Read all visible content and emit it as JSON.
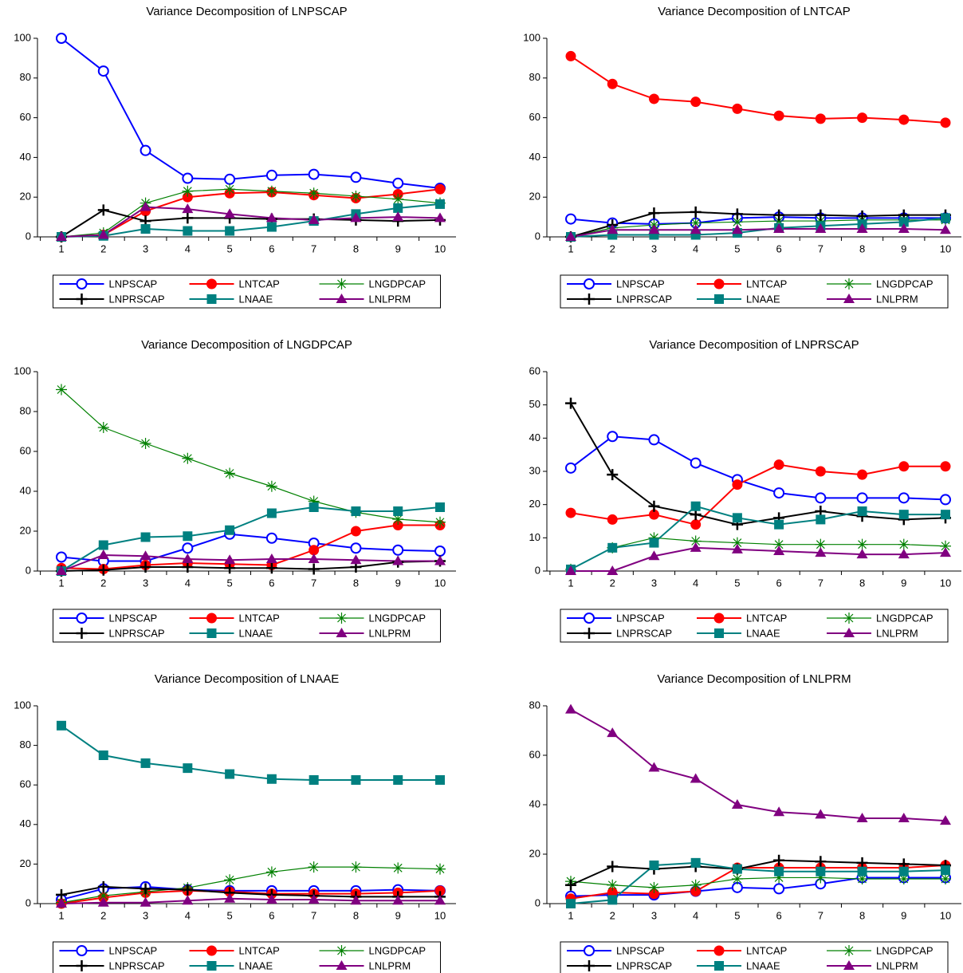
{
  "chart_data": [
    {
      "type": "line",
      "title": "Variance Decomposition of LNPSCAP",
      "categories": [
        "1",
        "2",
        "3",
        "4",
        "5",
        "6",
        "7",
        "8",
        "9",
        "10"
      ],
      "ylim": [
        0,
        100
      ],
      "yticks": [
        0,
        20,
        40,
        60,
        80,
        100
      ],
      "series": [
        {
          "name": "LNPSCAP",
          "color": "#0000ff",
          "marker": "circle-open",
          "values": [
            100,
            83.5,
            43.5,
            29.5,
            29,
            31,
            31.5,
            30,
            27,
            24.5
          ]
        },
        {
          "name": "LNTCAP",
          "color": "#ff0000",
          "marker": "circle",
          "values": [
            0,
            1,
            13,
            20,
            22,
            22.5,
            21,
            19.5,
            21.5,
            24
          ]
        },
        {
          "name": "LNGDPCAP",
          "color": "#008000",
          "marker": "asterisk",
          "values": [
            0,
            2,
            17,
            23,
            24,
            23,
            22,
            20.5,
            19,
            17
          ]
        },
        {
          "name": "LNPRSCAP",
          "color": "#000000",
          "marker": "plus",
          "values": [
            0,
            13.5,
            8,
            9.5,
            9.5,
            9,
            9,
            8.5,
            8,
            8.5
          ]
        },
        {
          "name": "LNAAE",
          "color": "#008080",
          "marker": "square",
          "values": [
            0,
            0.5,
            4,
            3,
            3,
            5,
            8,
            11.5,
            14.5,
            16.5
          ]
        },
        {
          "name": "LNLPRM",
          "color": "#800080",
          "marker": "triangle",
          "values": [
            0,
            1,
            15,
            14,
            11.5,
            9.5,
            8.5,
            9.5,
            10,
            9.5
          ]
        }
      ]
    },
    {
      "type": "line",
      "title": "Variance Decomposition of LNTCAP",
      "categories": [
        "1",
        "2",
        "3",
        "4",
        "5",
        "6",
        "7",
        "8",
        "9",
        "10"
      ],
      "ylim": [
        0,
        100
      ],
      "yticks": [
        0,
        20,
        40,
        60,
        80,
        100
      ],
      "series": [
        {
          "name": "LNPSCAP",
          "color": "#0000ff",
          "marker": "circle-open",
          "values": [
            9,
            7,
            6.5,
            7,
            9.5,
            10,
            9.5,
            9.5,
            9.5,
            9.5
          ]
        },
        {
          "name": "LNTCAP",
          "color": "#ff0000",
          "marker": "circle",
          "values": [
            91,
            77,
            69.5,
            68,
            64.5,
            61,
            59.5,
            60,
            59,
            57.5
          ]
        },
        {
          "name": "LNGDPCAP",
          "color": "#008000",
          "marker": "asterisk",
          "values": [
            0,
            4.5,
            6,
            7,
            7.5,
            8,
            8,
            8.5,
            8.5,
            8.5
          ]
        },
        {
          "name": "LNPRSCAP",
          "color": "#000000",
          "marker": "plus",
          "values": [
            0,
            6,
            12,
            12.5,
            11.5,
            11,
            11,
            10.5,
            11,
            11
          ]
        },
        {
          "name": "LNAAE",
          "color": "#008080",
          "marker": "square",
          "values": [
            0,
            1,
            1,
            1,
            2,
            4.5,
            5.5,
            6.5,
            7.5,
            9.5
          ]
        },
        {
          "name": "LNLPRM",
          "color": "#800080",
          "marker": "triangle",
          "values": [
            0,
            3.5,
            3.5,
            3.5,
            3.5,
            4,
            4,
            4,
            4,
            3.5
          ]
        }
      ]
    },
    {
      "type": "line",
      "title": "Variance Decomposition of LNGDPCAP",
      "categories": [
        "1",
        "2",
        "3",
        "4",
        "5",
        "6",
        "7",
        "8",
        "9",
        "10"
      ],
      "ylim": [
        0,
        100
      ],
      "yticks": [
        0,
        20,
        40,
        60,
        80,
        100
      ],
      "series": [
        {
          "name": "LNPSCAP",
          "color": "#0000ff",
          "marker": "circle-open",
          "values": [
            7,
            5,
            5,
            11.5,
            18.5,
            16.5,
            14,
            11.5,
            10.5,
            10
          ]
        },
        {
          "name": "LNTCAP",
          "color": "#ff0000",
          "marker": "circle",
          "values": [
            1.5,
            1,
            3,
            4,
            3.5,
            3,
            10.5,
            20,
            23,
            23
          ]
        },
        {
          "name": "LNGDPCAP",
          "color": "#008000",
          "marker": "asterisk",
          "values": [
            91,
            72,
            64,
            56.5,
            49,
            42.5,
            35,
            29.5,
            26,
            24.5
          ]
        },
        {
          "name": "LNPRSCAP",
          "color": "#000000",
          "marker": "plus",
          "values": [
            0,
            0.5,
            2,
            2,
            1.5,
            1.5,
            1,
            2,
            4.5,
            5
          ]
        },
        {
          "name": "LNAAE",
          "color": "#008080",
          "marker": "square",
          "values": [
            0,
            13,
            17,
            17.5,
            20.5,
            29,
            32,
            30,
            30,
            32
          ]
        },
        {
          "name": "LNLPRM",
          "color": "#800080",
          "marker": "triangle",
          "values": [
            0,
            8,
            7.5,
            6,
            5.5,
            6,
            6,
            5.5,
            5,
            5
          ]
        }
      ]
    },
    {
      "type": "line",
      "title": "Variance Decomposition of LNPRSCAP",
      "categories": [
        "1",
        "2",
        "3",
        "4",
        "5",
        "6",
        "7",
        "8",
        "9",
        "10"
      ],
      "ylim": [
        0,
        60
      ],
      "yticks": [
        0,
        10,
        20,
        30,
        40,
        50,
        60
      ],
      "series": [
        {
          "name": "LNPSCAP",
          "color": "#0000ff",
          "marker": "circle-open",
          "values": [
            31,
            40.5,
            39.5,
            32.5,
            27.5,
            23.5,
            22,
            22,
            22,
            21.5
          ]
        },
        {
          "name": "LNTCAP",
          "color": "#ff0000",
          "marker": "circle",
          "values": [
            17.5,
            15.5,
            17,
            14,
            26,
            32,
            30,
            29,
            31.5,
            31.5
          ]
        },
        {
          "name": "LNGDPCAP",
          "color": "#008000",
          "marker": "asterisk",
          "values": [
            0.5,
            7,
            10,
            9,
            8.5,
            8,
            8,
            8,
            8,
            7.5
          ]
        },
        {
          "name": "LNPRSCAP",
          "color": "#000000",
          "marker": "plus",
          "values": [
            50.5,
            29,
            19.5,
            17,
            14,
            16,
            18,
            16.5,
            15.5,
            16
          ]
        },
        {
          "name": "LNAAE",
          "color": "#008080",
          "marker": "square",
          "values": [
            0.5,
            7,
            8.5,
            19.5,
            16,
            14,
            15.5,
            18,
            17,
            17
          ]
        },
        {
          "name": "LNLPRM",
          "color": "#800080",
          "marker": "triangle",
          "values": [
            0,
            0,
            4.5,
            7,
            6.5,
            6,
            5.5,
            5,
            5,
            5.5
          ]
        }
      ]
    },
    {
      "type": "line",
      "title": "Variance Decomposition of LNAAE",
      "categories": [
        "1",
        "2",
        "3",
        "4",
        "5",
        "6",
        "7",
        "8",
        "9",
        "10"
      ],
      "ylim": [
        0,
        100
      ],
      "yticks": [
        0,
        20,
        40,
        60,
        80,
        100
      ],
      "series": [
        {
          "name": "LNPSCAP",
          "color": "#0000ff",
          "marker": "circle-open",
          "values": [
            2,
            7.5,
            8.5,
            7,
            6.5,
            6.5,
            6.5,
            6.5,
            7,
            6.5
          ]
        },
        {
          "name": "LNTCAP",
          "color": "#ff0000",
          "marker": "circle",
          "values": [
            0,
            3,
            5.5,
            6.5,
            6,
            5,
            5,
            5,
            5.5,
            6.5
          ]
        },
        {
          "name": "LNGDPCAP",
          "color": "#008000",
          "marker": "asterisk",
          "values": [
            0.5,
            4,
            6,
            8,
            12,
            16,
            18.5,
            18.5,
            18,
            17.5
          ]
        },
        {
          "name": "LNPRSCAP",
          "color": "#000000",
          "marker": "plus",
          "values": [
            4.5,
            8.5,
            7.5,
            7,
            5.5,
            4.5,
            4,
            3.5,
            3.5,
            3.5
          ]
        },
        {
          "name": "LNAAE",
          "color": "#008080",
          "marker": "square",
          "values": [
            90,
            75,
            71,
            68.5,
            65.5,
            63,
            62.5,
            62.5,
            62.5,
            62.5
          ]
        },
        {
          "name": "LNLPRM",
          "color": "#800080",
          "marker": "triangle",
          "values": [
            0,
            0.5,
            0.5,
            1.5,
            2.5,
            2,
            2,
            1.5,
            1.5,
            1.5
          ]
        }
      ]
    },
    {
      "type": "line",
      "title": "Variance Decomposition of LNLPRM",
      "categories": [
        "1",
        "2",
        "3",
        "4",
        "5",
        "6",
        "7",
        "8",
        "9",
        "10"
      ],
      "ylim": [
        0,
        80
      ],
      "yticks": [
        0,
        20,
        40,
        60,
        80
      ],
      "series": [
        {
          "name": "LNPSCAP",
          "color": "#0000ff",
          "marker": "circle-open",
          "values": [
            3,
            3.5,
            3.5,
            5,
            6.5,
            6,
            8,
            10.5,
            10.5,
            10.5
          ]
        },
        {
          "name": "LNTCAP",
          "color": "#ff0000",
          "marker": "circle",
          "values": [
            2,
            4.5,
            4,
            5,
            14.5,
            14.5,
            14.5,
            14.5,
            14.5,
            15.5
          ]
        },
        {
          "name": "LNGDPCAP",
          "color": "#008000",
          "marker": "asterisk",
          "values": [
            9,
            7.5,
            6.5,
            7.5,
            10,
            10.5,
            10.5,
            10,
            10,
            10
          ]
        },
        {
          "name": "LNPRSCAP",
          "color": "#000000",
          "marker": "plus",
          "values": [
            7.5,
            15,
            14,
            15,
            14,
            17.5,
            17,
            16.5,
            16,
            15.5
          ]
        },
        {
          "name": "LNAAE",
          "color": "#008080",
          "marker": "square",
          "values": [
            0,
            1.5,
            15.5,
            16.5,
            14,
            13,
            13,
            13,
            13,
            13.5
          ]
        },
        {
          "name": "LNLPRM",
          "color": "#800080",
          "marker": "triangle",
          "values": [
            78.5,
            69,
            55,
            50.5,
            40,
            37,
            36,
            34.5,
            34.5,
            33.5
          ]
        }
      ]
    }
  ]
}
